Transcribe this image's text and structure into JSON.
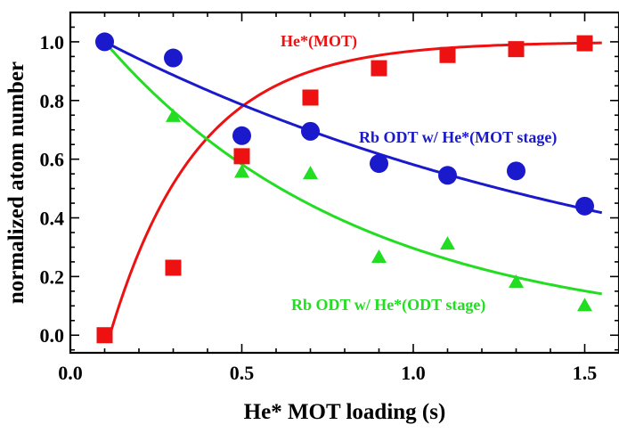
{
  "chart_data": {
    "type": "scatter",
    "title": "",
    "xlabel": "He* MOT loading (s)",
    "ylabel": "normalized atom number",
    "xlim": [
      0.0,
      1.6
    ],
    "ylim": [
      -0.06,
      1.1
    ],
    "x_ticks": [
      "0.0",
      "0.5",
      "1.0",
      "1.5"
    ],
    "x_tick_values": [
      0.0,
      0.5,
      1.0,
      1.5
    ],
    "y_ticks": [
      "0.0",
      "0.2",
      "0.4",
      "0.6",
      "0.8",
      "1.0"
    ],
    "y_tick_values": [
      0.0,
      0.2,
      0.4,
      0.6,
      0.8,
      1.0
    ],
    "grid": false,
    "series": [
      {
        "name": "He*(MOT)",
        "marker": "square",
        "color": "#ee1111",
        "x": [
          0.1,
          0.3,
          0.5,
          0.7,
          0.9,
          1.1,
          1.3,
          1.5
        ],
        "y": [
          0.0,
          0.23,
          0.61,
          0.81,
          0.91,
          0.955,
          0.975,
          0.995
        ],
        "fit": {
          "form": "1 - exp(-(x - 0.115) / 0.255)",
          "x_range": [
            0.118,
            1.55
          ]
        }
      },
      {
        "name": "Rb ODT w/ He*(MOT stage)",
        "marker": "circle",
        "color": "#1a1acc",
        "x": [
          0.1,
          0.3,
          0.5,
          0.7,
          0.9,
          1.1,
          1.3,
          1.5
        ],
        "y": [
          1.0,
          0.945,
          0.68,
          0.695,
          0.585,
          0.545,
          0.56,
          0.44
        ],
        "fit": {
          "form": "exp(-(x - 0.1) / 1.66)",
          "x_range": [
            0.1,
            1.55
          ]
        }
      },
      {
        "name": "Rb ODT w/ He*(ODT stage)",
        "marker": "triangle",
        "color": "#22dd22",
        "x": [
          0.1,
          0.3,
          0.5,
          0.7,
          0.9,
          1.1,
          1.3,
          1.5
        ],
        "y": [
          1.0,
          0.745,
          0.555,
          0.55,
          0.265,
          0.31,
          0.18,
          0.1
        ],
        "fit": {
          "form": "exp(-(x - 0.1) / 0.74)",
          "x_range": [
            0.1,
            1.55
          ]
        }
      }
    ]
  }
}
